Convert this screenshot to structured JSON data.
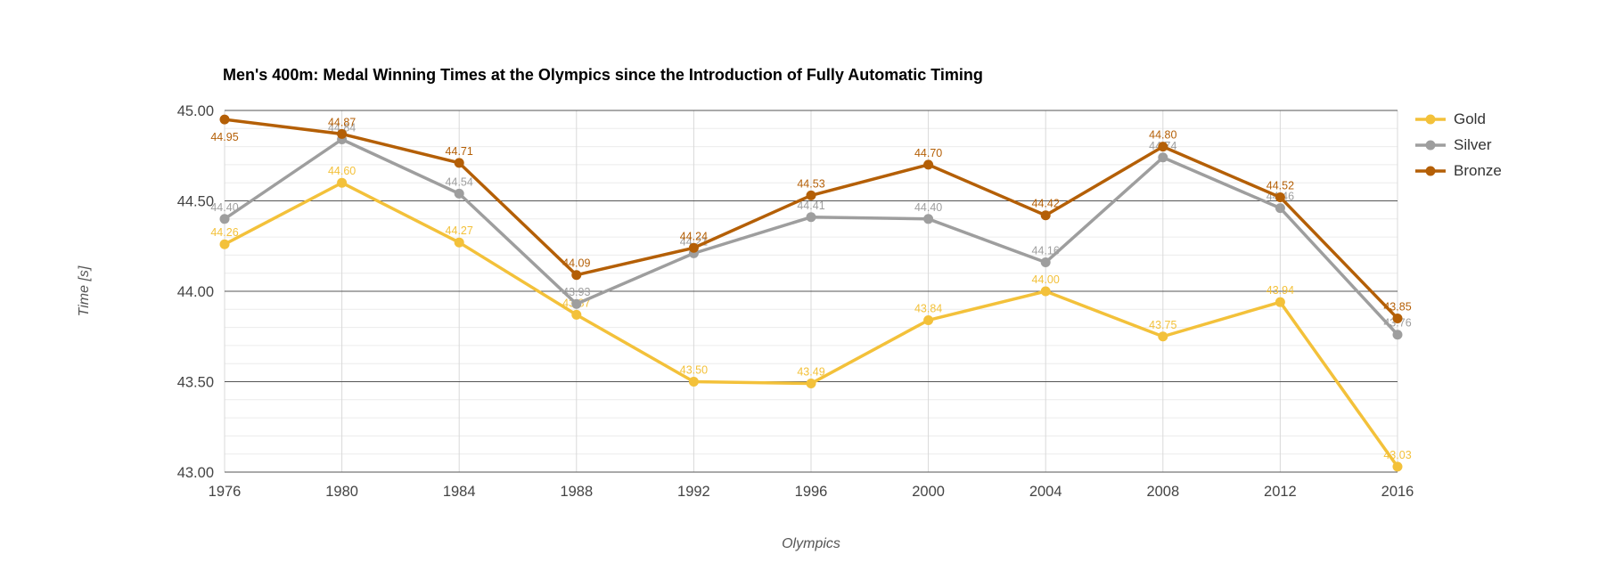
{
  "title": "Men's 400m: Medal Winning Times at the Olympics since the Introduction of Fully Automatic Timing",
  "chart_data": {
    "type": "line",
    "title": "Men's 400m: Medal Winning Times at the Olympics since the Introduction of Fully Automatic Timing",
    "xlabel": "Olympics",
    "ylabel": "Time [s]",
    "x": [
      1976,
      1980,
      1984,
      1988,
      1992,
      1996,
      2000,
      2004,
      2008,
      2012,
      2016
    ],
    "ylim": [
      43.0,
      45.0
    ],
    "y_major_step": 0.5,
    "y_minor_step": 0.1,
    "grid": true,
    "legend_position": "top-right",
    "data_labels": true,
    "series": [
      {
        "name": "Gold",
        "color": "#F3C13A",
        "values": [
          44.26,
          44.6,
          44.27,
          43.87,
          43.5,
          43.49,
          43.84,
          44.0,
          43.75,
          43.94,
          43.03
        ]
      },
      {
        "name": "Silver",
        "color": "#9E9E9E",
        "values": [
          44.4,
          44.84,
          44.54,
          43.93,
          44.21,
          44.41,
          44.4,
          44.16,
          44.74,
          44.46,
          43.76
        ]
      },
      {
        "name": "Bronze",
        "color": "#B45F06",
        "values": [
          44.95,
          44.87,
          44.71,
          44.09,
          44.24,
          44.53,
          44.7,
          44.42,
          44.8,
          44.52,
          43.85
        ]
      }
    ]
  }
}
